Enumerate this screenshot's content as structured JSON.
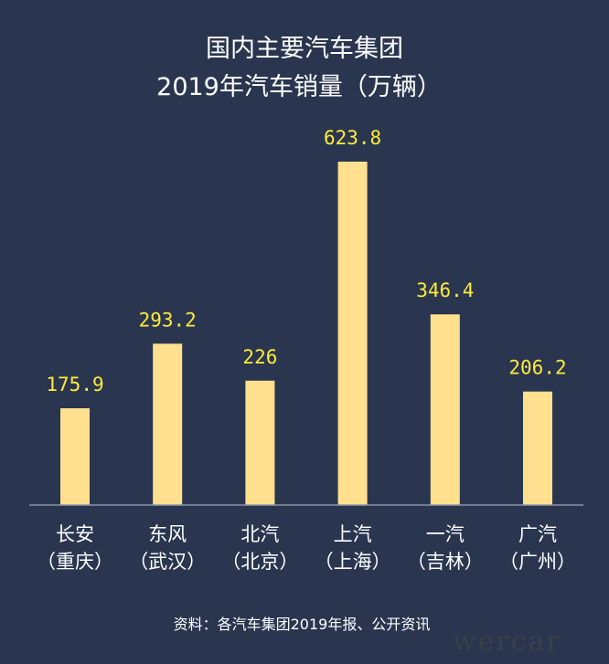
{
  "chart_data": {
    "type": "bar",
    "title_lines": [
      "国内主要汽车集团",
      "2019年汽车销量（万辆）"
    ],
    "categories": [
      [
        "长安",
        "（重庆）"
      ],
      [
        "东风",
        "（武汉）"
      ],
      [
        "北汽",
        "（北京）"
      ],
      [
        "上汽",
        "（上海）"
      ],
      [
        "一汽",
        "（吉林）"
      ],
      [
        "广汽",
        "（广州）"
      ]
    ],
    "values": [
      175.9,
      293.2,
      226,
      623.8,
      346.4,
      206.2
    ],
    "value_labels": [
      "175.9",
      "293.2",
      "226",
      "623.8",
      "346.4",
      "206.2"
    ],
    "ylim": [
      0,
      623.8
    ],
    "grid": false,
    "legend": "none",
    "bar_color": "#ffe08f",
    "value_label_color": "#ffeb3b",
    "background_color": "#2a3650",
    "source": "资料：各汽车集团2019年报、公开资讯",
    "watermark": "wercar"
  }
}
